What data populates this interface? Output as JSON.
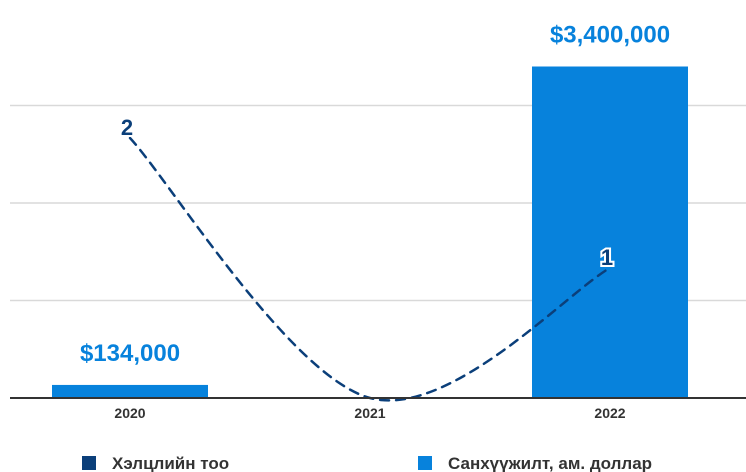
{
  "chart_data": {
    "type": "bar",
    "categories": [
      "2020",
      "2021",
      "2022"
    ],
    "series": [
      {
        "name": "Санхүүжилт, ам. доллар",
        "type": "bar",
        "axis": "left",
        "values": [
          134000,
          0,
          3400000
        ],
        "labels": [
          "$134,000",
          "",
          "$3,400,000"
        ],
        "color": "#0782DC"
      },
      {
        "name": "Хэлцлийн тоо",
        "type": "line",
        "style": "dashed",
        "axis": "right",
        "values": [
          2,
          0,
          1
        ],
        "labels": [
          "2",
          "",
          "1"
        ],
        "color": "#0B3F7A"
      }
    ],
    "ylim_left": [
      0,
      4000000
    ],
    "ylim_right": [
      0,
      3
    ],
    "grid": true,
    "legend_position": "bottom"
  }
}
